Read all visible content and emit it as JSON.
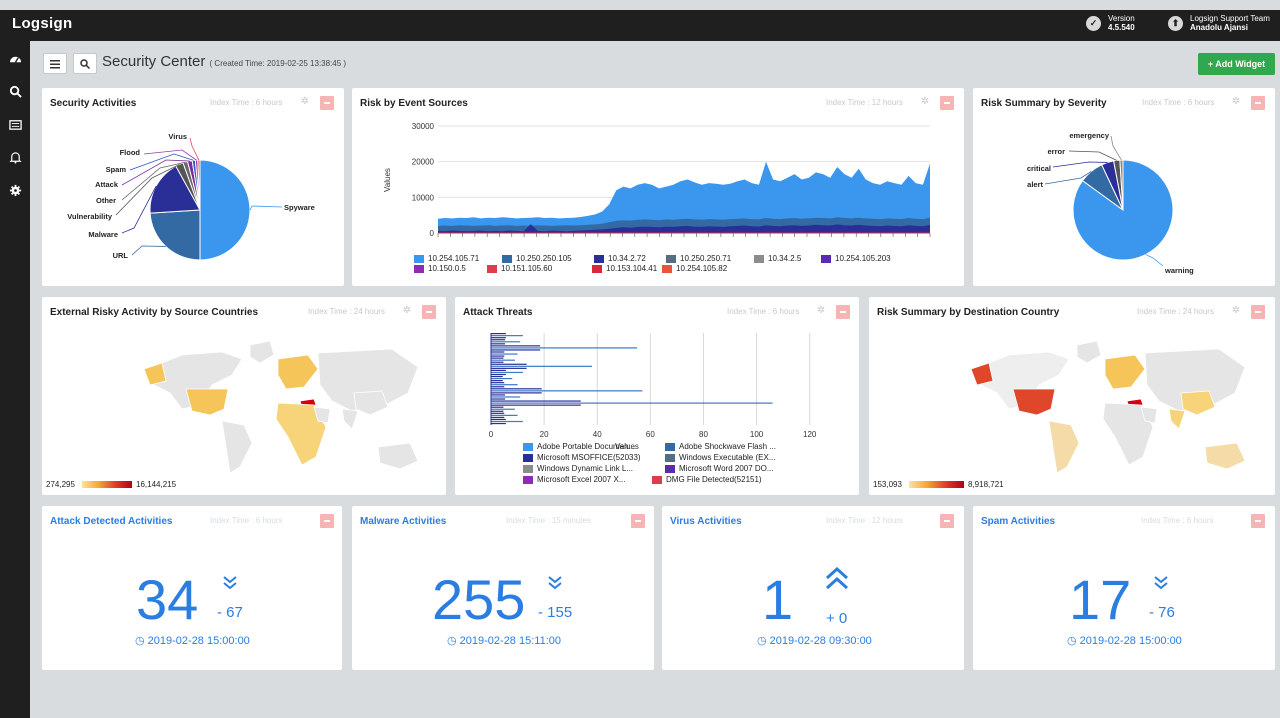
{
  "app": {
    "brand": "Logsign",
    "version_label": "Version",
    "version": "4.5.540",
    "user_team": "Logsign Support Team",
    "user_name": "Anadolu Ajansi"
  },
  "sidebar": {
    "items": [
      {
        "name": "dashboard-icon"
      },
      {
        "name": "search-icon"
      },
      {
        "name": "report-icon"
      },
      {
        "name": "bell-icon"
      },
      {
        "name": "gear-icon"
      }
    ]
  },
  "toolbar": {
    "title": "Security Center",
    "created": "( Created Time: 2019-02-25 13:38:45 )",
    "add_widget": "+ Add Widget"
  },
  "panels": {
    "security_activities": {
      "title": "Security Activities",
      "index": "Index Time : 6 hours",
      "chart_data": {
        "type": "pie",
        "labels": [
          "Spyware",
          "URL",
          "Malware",
          "Vulnerability",
          "Other",
          "Attack",
          "Spam",
          "Flood",
          "Virus"
        ],
        "values": [
          50,
          24,
          18,
          2.5,
          1.5,
          1.5,
          1,
          0.8,
          0.7
        ],
        "colors": [
          "#3b97ee",
          "#346aa3",
          "#2a2f98",
          "#555",
          "#666",
          "#7a2b9c",
          "#2d56c4",
          "#9b3bb0",
          "#e04a57"
        ]
      }
    },
    "risk_event_sources": {
      "title": "Risk by Event Sources",
      "index": "Index Time : 12 hours",
      "chart_data": {
        "type": "area",
        "ylabel": "Values",
        "yticks": [
          0,
          10000,
          20000,
          30000
        ],
        "ylim": [
          0,
          30000
        ],
        "series": [
          {
            "name": "10.254.105.71",
            "color": "#3b97ee",
            "values": [
              4000,
              4200,
              4100,
              4300,
              4200,
              4400,
              4100,
              4300,
              4200,
              4400,
              4300,
              4100,
              4200,
              4300,
              4400,
              4200,
              4300,
              4100,
              4200,
              4300,
              4500,
              4800,
              5200,
              6000,
              8000,
              12000,
              13000,
              12500,
              13500,
              14000,
              13500,
              12500,
              13000,
              13500,
              14500,
              15000,
              14200,
              13500,
              14000,
              13800,
              13500,
              13800,
              14500,
              15000,
              14000,
              13500,
              20000,
              15000,
              14500,
              15500,
              16500,
              15000,
              15500,
              17000,
              16500,
              15500,
              18500,
              16500,
              15500,
              18000,
              15000,
              14000,
              13500,
              14500,
              14000,
              13500,
              16000,
              14000,
              13500,
              19500
            ]
          },
          {
            "name": "10.250.250.105",
            "color": "#346aa3",
            "values": [
              2000,
              2100,
              2000,
              2200,
              2100,
              2000,
              2100,
              2200,
              2000,
              2100,
              2200,
              2000,
              2100,
              2000,
              2200,
              2100,
              2000,
              2100,
              2200,
              2100,
              2200,
              2300,
              2400,
              2600,
              3000,
              3400,
              3600,
              3500,
              3700,
              3800,
              3700,
              3600,
              3800,
              3700,
              3900,
              4000,
              3800,
              3700,
              3900,
              3800,
              3700,
              3900,
              4000,
              4100,
              3900,
              3800,
              4200,
              4000,
              3900,
              4100,
              4200,
              4000,
              4100,
              4300,
              4200,
              4100,
              4400,
              4200,
              4100,
              4300,
              4100,
              4000,
              3900,
              4100,
              4000,
              3900,
              4200,
              4000,
              3900,
              4300
            ]
          },
          {
            "name": "10.34.2.72",
            "color": "#2a2f98",
            "values": [
              600,
              500,
              700,
              600,
              500,
              600,
              700,
              500,
              600,
              500,
              700,
              600,
              500,
              2500,
              600,
              500,
              700,
              600,
              500,
              600,
              700,
              800,
              900,
              1000,
              1200,
              1400,
              1600,
              1500,
              1700,
              1800,
              1700,
              1600,
              1800,
              1700,
              1900,
              2000,
              1800,
              1700,
              1900,
              1800,
              1700,
              1900,
              2000,
              2100,
              1900,
              1800,
              2200,
              2000,
              1900,
              2100,
              2200,
              2000,
              2100,
              2300,
              2200,
              2100,
              2400,
              2200,
              2100,
              2300,
              2100,
              2000,
              1900,
              2100,
              2000,
              1900,
              2200,
              2000,
              1900,
              2300
            ]
          },
          {
            "name": "10.250.250.71",
            "color": "#556e82"
          },
          {
            "name": "10.34.2.5",
            "color": "#8c8c8c"
          },
          {
            "name": "10.254.105.203",
            "color": "#5a2bb0"
          },
          {
            "name": "10.150.0.5",
            "color": "#8e2cb5"
          },
          {
            "name": "10.151.105.60",
            "color": "#e03c50"
          },
          {
            "name": "10.153.104.41",
            "color": "#d8283c"
          },
          {
            "name": "10.254.105.82",
            "color": "#e8543a"
          }
        ]
      }
    },
    "risk_severity": {
      "title": "Risk Summary by Severity",
      "index": "Index Time : 6 hours",
      "chart_data": {
        "type": "pie",
        "labels": [
          "warning",
          "alert",
          "critical",
          "error",
          "emergency"
        ],
        "values": [
          85,
          8,
          4,
          2,
          1
        ],
        "colors": [
          "#3b97ee",
          "#346aa3",
          "#2a2f98",
          "#555",
          "#888"
        ]
      }
    },
    "external_risky": {
      "title": "External Risky Activity by Source Countries",
      "index": "Index Time : 24 hours",
      "legend_min": "274,295",
      "legend_max": "16,144,215"
    },
    "attack_threats": {
      "title": "Attack Threats",
      "index": "Index Time : 6 hours",
      "chart_data": {
        "type": "bar",
        "orientation": "horizontal",
        "xlabel": "Values",
        "xticks": [
          0,
          20,
          40,
          60,
          80,
          100,
          120
        ],
        "xlim": [
          0,
          125
        ],
        "values": [
          12,
          11,
          55,
          10,
          9,
          38,
          12,
          8,
          10,
          57,
          11,
          106,
          9,
          10,
          12
        ],
        "legend": [
          "Adobe Portable Documen...",
          "Adobe Shockwave Flash ...",
          "Microsoft MSOFFICE(52033)",
          "Windows Executable (EX...",
          "Windows Dynamic Link L...",
          "Microsoft Word 2007 DO...",
          "Microsoft Excel 2007 X...",
          "DMG File Detected(52151)"
        ],
        "legend_colors": [
          "#3b97ee",
          "#346aa3",
          "#2a2f98",
          "#556e82",
          "#8c8c8c",
          "#5a2bb0",
          "#8e2cb5",
          "#e03c50"
        ]
      }
    },
    "risk_destination": {
      "title": "Risk Summary by Destination Country",
      "index": "Index Time : 24 hours",
      "legend_min": "153,093",
      "legend_max": "8,918,721"
    },
    "attack_detected": {
      "title": "Attack Detected Activities",
      "index": "Index Time : 6 hours",
      "value": "34",
      "delta": "- 67",
      "time": "2019-02-28 15:00:00"
    },
    "malware": {
      "title": "Malware Activities",
      "index": "Index Time : 15 minutes",
      "value": "255",
      "delta": "- 155",
      "time": "2019-02-28 15:11:00"
    },
    "virus": {
      "title": "Virus Activities",
      "index": "Index Time : 12 hours",
      "value": "1",
      "delta": "+ 0",
      "time": "2019-02-28 09:30:00"
    },
    "spam": {
      "title": "Spam Activities",
      "index": "Index Time : 6 hours",
      "value": "17",
      "delta": "- 76",
      "time": "2019-02-28 15:00:00"
    }
  }
}
